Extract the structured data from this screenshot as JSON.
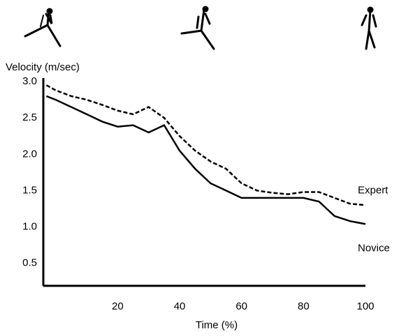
{
  "chart_data": {
    "type": "line",
    "y_label": "Velocity (m/sec)",
    "x_label": "Time (%)",
    "x": [
      -3,
      0,
      5,
      10,
      15,
      20,
      25,
      30,
      35,
      40,
      45,
      50,
      55,
      60,
      65,
      70,
      75,
      80,
      85,
      90,
      95,
      100
    ],
    "series": [
      {
        "name": "Expert",
        "color": "#000000",
        "dash": true,
        "values": [
          2.95,
          2.88,
          2.8,
          2.75,
          2.68,
          2.6,
          2.55,
          2.65,
          2.5,
          2.25,
          2.05,
          1.9,
          1.8,
          1.6,
          1.5,
          1.47,
          1.45,
          1.48,
          1.48,
          1.4,
          1.32,
          1.3
        ]
      },
      {
        "name": "Novice",
        "color": "#000000",
        "dash": false,
        "values": [
          2.8,
          2.75,
          2.65,
          2.55,
          2.45,
          2.38,
          2.4,
          2.3,
          2.4,
          2.05,
          1.8,
          1.6,
          1.5,
          1.4,
          1.4,
          1.4,
          1.4,
          1.4,
          1.35,
          1.15,
          1.08,
          1.04
        ]
      }
    ],
    "xlim": [
      -4,
      100
    ],
    "xticks": [
      20,
      40,
      60,
      80,
      100
    ],
    "ylim": [
      0.2,
      3.0
    ],
    "yticks": [
      {
        "value": 0.5,
        "label": "0.5"
      },
      {
        "value": 1,
        "label": "1.0"
      },
      {
        "value": 1.5,
        "label": "1.5"
      },
      {
        "value": 2,
        "label": "2.0"
      },
      {
        "value": 2.5,
        "label": "2.5"
      },
      {
        "value": 3,
        "label": "3.0"
      }
    ],
    "grid": false
  }
}
